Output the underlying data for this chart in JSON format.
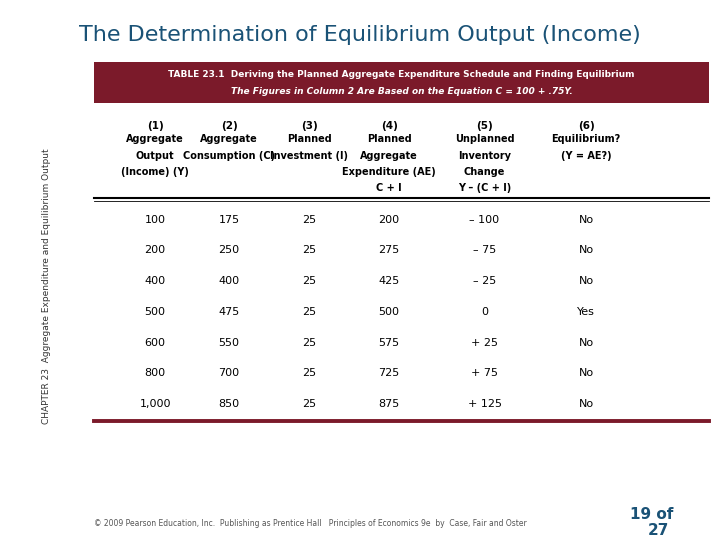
{
  "title": "The Determination of Equilibrium Output (Income)",
  "title_color": "#1a5276",
  "title_fontsize": 16,
  "table_header_line1": "TABLE 23.1  Deriving the Planned Aggregate Expenditure Schedule and Finding Equilibrium",
  "table_header_line2": "The Figures in Column 2 Are Based on the Equation C = 100 + .75Y.",
  "header_bg": "#7b1a2a",
  "header_text_color": "#ffffff",
  "col_numbers": [
    "(1)",
    "(2)",
    "(3)",
    "(4)",
    "(5)",
    "(6)"
  ],
  "col_headers": [
    [
      "Aggregate",
      "Output",
      "(Income) (Y)"
    ],
    [
      "Aggregate",
      "Consumption (C)"
    ],
    [
      "Planned",
      "Investment (I)"
    ],
    [
      "Planned",
      "Aggregate",
      "Expenditure (AE)",
      "C + I"
    ],
    [
      "Unplanned",
      "Inventory",
      "Change",
      "Y – (C + I)"
    ],
    [
      "Equilibrium?",
      "(Y = AE?)"
    ]
  ],
  "data_rows": [
    [
      "100",
      "175",
      "25",
      "200",
      "– 100",
      "No"
    ],
    [
      "200",
      "250",
      "25",
      "275",
      "– 75",
      "No"
    ],
    [
      "400",
      "400",
      "25",
      "425",
      "– 25",
      "No"
    ],
    [
      "500",
      "475",
      "25",
      "500",
      "0",
      "Yes"
    ],
    [
      "600",
      "550",
      "25",
      "575",
      "+ 25",
      "No"
    ],
    [
      "800",
      "700",
      "25",
      "725",
      "+ 75",
      "No"
    ],
    [
      "1,000",
      "850",
      "25",
      "875",
      "+ 125",
      "No"
    ]
  ],
  "yes_row": 3,
  "sidebar_text": "CHAPTER 23  Aggregate Expenditure and Equilibrium Output",
  "sidebar_color": "#333333",
  "footer_text": "© 2009 Pearson Education, Inc.  Publishing as Prentice Hall   Principles of Economics 9e  by  Case, Fair and Oster",
  "footer_color": "#555555",
  "page_text": "19 of",
  "page_num": "27",
  "page_color": "#1a5276",
  "rule_color": "#7b1a2a",
  "col_centers_rel": [
    0.1,
    0.22,
    0.35,
    0.48,
    0.635,
    0.8
  ]
}
